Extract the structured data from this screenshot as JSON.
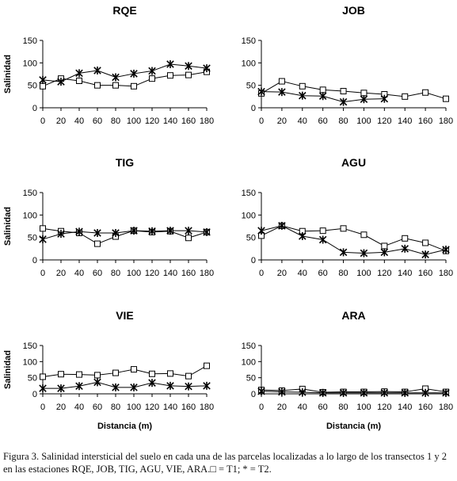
{
  "figure": {
    "caption": "Figura 3. Salinidad intersticial del suelo en cada una de las parcelas localizadas a lo largo de los transectos 1 y 2 en las estaciones RQE, JOB, TIG, AGU, VIE, ARA.□ = T1;  * = T2."
  },
  "chart_data": [
    {
      "type": "line",
      "title": "RQE",
      "xlabel": "",
      "ylabel": "Salinidad",
      "x": [
        0,
        20,
        40,
        60,
        80,
        100,
        120,
        140,
        160,
        180
      ],
      "xlim": [
        0,
        180
      ],
      "ylim": [
        0,
        150
      ],
      "xticks": [
        "0",
        "20",
        "40",
        "60",
        "80",
        "100",
        "120",
        "140",
        "160",
        "180"
      ],
      "yticks": [
        "0",
        "50",
        "100",
        "150"
      ],
      "series": [
        {
          "marker": "square",
          "values": [
            48,
            65,
            60,
            50,
            50,
            48,
            65,
            72,
            73,
            80
          ]
        },
        {
          "marker": "star",
          "values": [
            62,
            58,
            77,
            83,
            68,
            76,
            82,
            97,
            93,
            88
          ]
        }
      ]
    },
    {
      "type": "line",
      "title": "JOB",
      "xlabel": "",
      "ylabel": "",
      "x": [
        0,
        20,
        40,
        60,
        80,
        100,
        120,
        140,
        160,
        180
      ],
      "xlim": [
        0,
        180
      ],
      "ylim": [
        0,
        150
      ],
      "xticks": [
        "0",
        "20",
        "40",
        "60",
        "80",
        "100",
        "120",
        "140",
        "160",
        "180"
      ],
      "yticks": [
        "0",
        "50",
        "100",
        "150"
      ],
      "series": [
        {
          "marker": "square",
          "values": [
            32,
            59,
            48,
            40,
            37,
            33,
            30,
            25,
            34,
            20
          ]
        },
        {
          "marker": "star",
          "x": [
            0,
            20,
            40,
            60,
            80,
            100,
            120
          ],
          "values": [
            36,
            35,
            27,
            26,
            13,
            19,
            20
          ]
        }
      ]
    },
    {
      "type": "line",
      "title": "TIG",
      "xlabel": "",
      "ylabel": "Salinidad",
      "x": [
        0,
        20,
        40,
        60,
        80,
        100,
        120,
        140,
        160,
        180
      ],
      "xlim": [
        0,
        180
      ],
      "ylim": [
        0,
        150
      ],
      "xticks": [
        "0",
        "20",
        "40",
        "60",
        "80",
        "100",
        "120",
        "140",
        "160",
        "180"
      ],
      "yticks": [
        "0",
        "50",
        "100",
        "150"
      ],
      "series": [
        {
          "marker": "square",
          "values": [
            70,
            64,
            60,
            36,
            52,
            65,
            62,
            64,
            49,
            62
          ]
        },
        {
          "marker": "star",
          "values": [
            46,
            58,
            63,
            60,
            60,
            65,
            64,
            65,
            65,
            62
          ]
        }
      ]
    },
    {
      "type": "line",
      "title": "AGU",
      "xlabel": "",
      "ylabel": "",
      "x": [
        0,
        20,
        40,
        60,
        80,
        100,
        120,
        140,
        160,
        180
      ],
      "xlim": [
        0,
        180
      ],
      "ylim": [
        0,
        150
      ],
      "xticks": [
        "0",
        "20",
        "40",
        "60",
        "80",
        "100",
        "120",
        "140",
        "160",
        "180"
      ],
      "yticks": [
        "0",
        "50",
        "100",
        "150"
      ],
      "series": [
        {
          "marker": "square",
          "values": [
            54,
            76,
            64,
            65,
            70,
            56,
            31,
            48,
            38,
            20
          ]
        },
        {
          "marker": "star",
          "values": [
            65,
            76,
            53,
            45,
            17,
            15,
            17,
            25,
            12,
            23
          ]
        }
      ]
    },
    {
      "type": "line",
      "title": "VIE",
      "xlabel": "Distancia (m)",
      "ylabel": "Salinidad",
      "x": [
        0,
        20,
        40,
        60,
        80,
        100,
        120,
        140,
        160,
        180
      ],
      "xlim": [
        0,
        180
      ],
      "ylim": [
        0,
        150
      ],
      "xticks": [
        "0",
        "20",
        "40",
        "60",
        "80",
        "100",
        "120",
        "140",
        "160",
        "180"
      ],
      "yticks": [
        "0",
        "50",
        "100",
        "150"
      ],
      "series": [
        {
          "marker": "square",
          "values": [
            53,
            61,
            60,
            58,
            65,
            76,
            62,
            63,
            55,
            87
          ]
        },
        {
          "marker": "star",
          "values": [
            17,
            17,
            24,
            36,
            20,
            20,
            34,
            25,
            23,
            25
          ]
        }
      ]
    },
    {
      "type": "line",
      "title": "ARA",
      "xlabel": "Distancia (m)",
      "ylabel": "",
      "x": [
        0,
        20,
        40,
        60,
        80,
        100,
        120,
        140,
        160,
        180
      ],
      "xlim": [
        0,
        180
      ],
      "ylim": [
        0,
        150
      ],
      "xticks": [
        "0",
        "20",
        "40",
        "60",
        "80",
        "100",
        "120",
        "140",
        "160",
        "180"
      ],
      "yticks": [
        "0",
        "50",
        "100",
        "150"
      ],
      "series": [
        {
          "marker": "square",
          "values": [
            12,
            10,
            15,
            5,
            6,
            6,
            7,
            6,
            16,
            6
          ]
        },
        {
          "marker": "star",
          "values": [
            8,
            6,
            5,
            3,
            3,
            3,
            3,
            3,
            3,
            3
          ]
        }
      ]
    }
  ]
}
